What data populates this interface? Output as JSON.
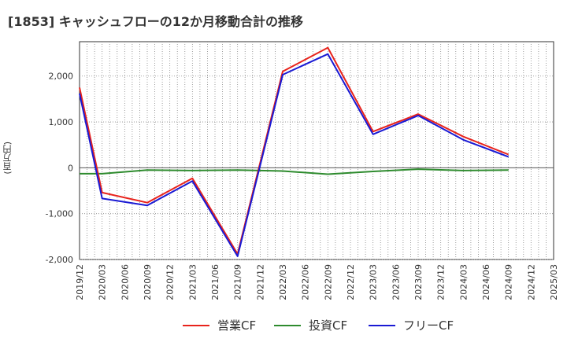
{
  "chart_data": {
    "type": "line",
    "title": "[1853]  キャッシュフローの12か月移動合計の推移",
    "ylabel": "(百万円)",
    "xlabel": "",
    "ylim": [
      -2000,
      2750
    ],
    "yticks": [
      2000,
      1000,
      0,
      -1000,
      -2000
    ],
    "ytick_labels": [
      "2,000",
      "1,000",
      "0",
      "-1,000",
      "-2,000"
    ],
    "categories": [
      "2019/12",
      "2020/03",
      "2020/06",
      "2020/09",
      "2020/12",
      "2021/03",
      "2021/06",
      "2021/09",
      "2021/12",
      "2022/03",
      "2022/06",
      "2022/09",
      "2022/12",
      "2023/03",
      "2023/06",
      "2023/09",
      "2023/12",
      "2024/03",
      "2024/06",
      "2024/09",
      "2024/12",
      "2025/03"
    ],
    "grid": true,
    "legend_position": "bottom",
    "series": [
      {
        "name": "営業CF",
        "color": "#e8231c",
        "points": [
          [
            "2019/12",
            1750
          ],
          [
            "2020/03",
            -540
          ],
          [
            "2020/09",
            -760
          ],
          [
            "2021/03",
            -230
          ],
          [
            "2021/09",
            -1880
          ],
          [
            "2022/03",
            2100
          ],
          [
            "2022/09",
            2620
          ],
          [
            "2023/03",
            790
          ],
          [
            "2023/09",
            1170
          ],
          [
            "2024/03",
            680
          ],
          [
            "2024/09",
            290
          ]
        ]
      },
      {
        "name": "投資CF",
        "color": "#2e8b2e",
        "points": [
          [
            "2019/12",
            -130
          ],
          [
            "2020/03",
            -130
          ],
          [
            "2020/09",
            -50
          ],
          [
            "2021/03",
            -60
          ],
          [
            "2021/09",
            -50
          ],
          [
            "2022/03",
            -70
          ],
          [
            "2022/09",
            -140
          ],
          [
            "2023/03",
            -80
          ],
          [
            "2023/09",
            -30
          ],
          [
            "2024/03",
            -60
          ],
          [
            "2024/09",
            -50
          ]
        ]
      },
      {
        "name": "フリーCF",
        "color": "#1a1ad4",
        "points": [
          [
            "2019/12",
            1620
          ],
          [
            "2020/03",
            -670
          ],
          [
            "2020/09",
            -820
          ],
          [
            "2021/03",
            -290
          ],
          [
            "2021/09",
            -1930
          ],
          [
            "2022/03",
            2030
          ],
          [
            "2022/09",
            2480
          ],
          [
            "2023/03",
            730
          ],
          [
            "2023/09",
            1140
          ],
          [
            "2024/03",
            610
          ],
          [
            "2024/09",
            240
          ]
        ]
      }
    ]
  }
}
